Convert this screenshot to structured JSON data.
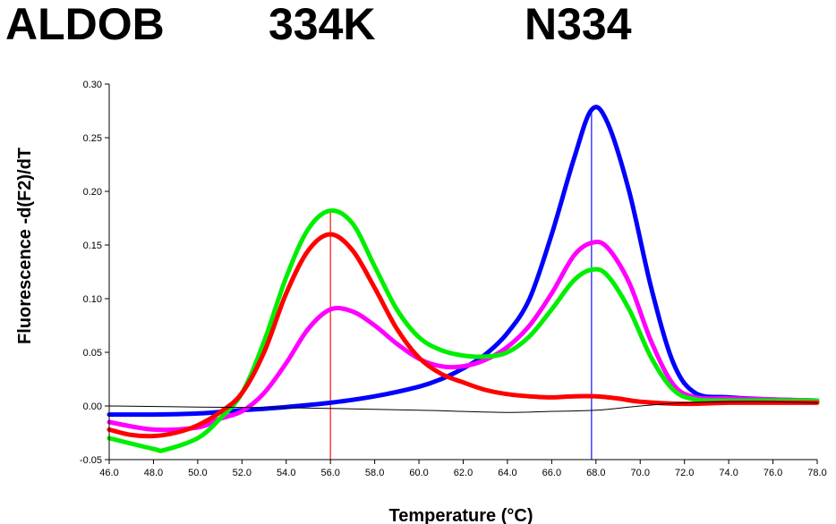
{
  "header": {
    "gene": "ALDOB",
    "mutant": "334K",
    "normal": "N334"
  },
  "chart_data": {
    "type": "line",
    "xlabel": "Temperature (°C)",
    "ylabel": "Fluorescence -d(F2)/dT",
    "xlim": [
      46,
      78
    ],
    "ylim": [
      -0.05,
      0.3
    ],
    "xticks": [
      "46.0",
      "48.0",
      "50.0",
      "52.0",
      "54.0",
      "56.0",
      "58.0",
      "60.0",
      "62.0",
      "64.0",
      "66.0",
      "68.0",
      "70.0",
      "72.0",
      "74.0",
      "76.0",
      "78.0"
    ],
    "yticks": [
      "-0.05",
      "0.00",
      "0.05",
      "0.10",
      "0.15",
      "0.20",
      "0.25",
      "0.30"
    ],
    "grid": false,
    "reference_lines": [
      {
        "x": 56.0,
        "color": "#ff2020"
      },
      {
        "x": 67.8,
        "color": "#2020ff"
      }
    ],
    "series": [
      {
        "color": "#0000ff",
        "x": [
          46,
          48,
          50,
          52,
          54,
          56,
          58,
          60,
          61,
          62,
          63,
          64,
          65,
          66,
          67,
          67.8,
          68.5,
          69.5,
          70.5,
          71.5,
          72.5,
          74,
          76,
          78
        ],
        "y": [
          -0.008,
          -0.008,
          -0.007,
          -0.004,
          -0.001,
          0.003,
          0.009,
          0.018,
          0.025,
          0.035,
          0.048,
          0.068,
          0.1,
          0.16,
          0.23,
          0.276,
          0.265,
          0.2,
          0.11,
          0.04,
          0.012,
          0.008,
          0.006,
          0.005
        ]
      },
      {
        "color": "#ff00ff",
        "x": [
          46,
          48,
          50,
          51,
          52,
          53,
          54,
          55,
          56,
          57,
          58,
          59,
          60,
          61,
          62,
          63,
          64,
          65,
          66,
          67,
          67.8,
          68.5,
          69.5,
          70.5,
          71.5,
          72.5,
          74,
          76,
          78
        ],
        "y": [
          -0.015,
          -0.022,
          -0.02,
          -0.012,
          -0.005,
          0.012,
          0.04,
          0.072,
          0.09,
          0.088,
          0.075,
          0.058,
          0.044,
          0.037,
          0.037,
          0.043,
          0.055,
          0.075,
          0.105,
          0.14,
          0.152,
          0.148,
          0.115,
          0.06,
          0.02,
          0.008,
          0.007,
          0.006,
          0.005
        ]
      },
      {
        "color": "#00ee00",
        "x": [
          46,
          48,
          48.5,
          50,
          51,
          52,
          53,
          54,
          55,
          56,
          57,
          58,
          59,
          60,
          61,
          62,
          63,
          64,
          65,
          66,
          67,
          67.8,
          68.5,
          69.5,
          70.5,
          71.5,
          72.5,
          74,
          76,
          78
        ],
        "y": [
          -0.03,
          -0.04,
          -0.041,
          -0.03,
          -0.012,
          0.012,
          0.06,
          0.12,
          0.165,
          0.182,
          0.17,
          0.13,
          0.09,
          0.064,
          0.052,
          0.047,
          0.046,
          0.05,
          0.065,
          0.09,
          0.117,
          0.127,
          0.122,
          0.09,
          0.045,
          0.015,
          0.006,
          0.005,
          0.005,
          0.005
        ]
      },
      {
        "color": "#ff0000",
        "x": [
          46,
          47,
          48,
          49,
          50,
          51,
          52,
          53,
          54,
          55,
          56,
          57,
          58,
          59,
          60,
          61,
          62,
          63,
          64,
          65,
          66,
          67,
          68,
          69,
          70,
          72,
          74,
          76,
          78
        ],
        "y": [
          -0.022,
          -0.027,
          -0.028,
          -0.025,
          -0.018,
          -0.006,
          0.012,
          0.05,
          0.105,
          0.145,
          0.16,
          0.145,
          0.11,
          0.072,
          0.045,
          0.03,
          0.022,
          0.015,
          0.011,
          0.009,
          0.008,
          0.009,
          0.009,
          0.007,
          0.004,
          0.002,
          0.003,
          0.003,
          0.003
        ]
      },
      {
        "color": "#000000",
        "x": [
          46,
          50,
          55,
          60,
          64,
          66,
          68,
          70,
          72,
          74,
          76,
          78
        ],
        "y": [
          0.0,
          -0.001,
          -0.002,
          -0.004,
          -0.006,
          -0.005,
          -0.004,
          0.0,
          0.003,
          0.004,
          0.004,
          0.003
        ]
      }
    ]
  }
}
